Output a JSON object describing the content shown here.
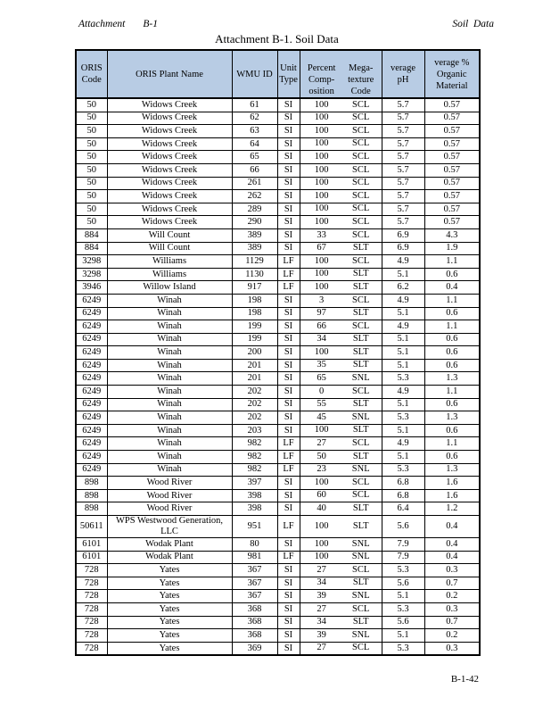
{
  "page": {
    "running_header": {
      "left_label": "Attachment",
      "left_ref": "B-1",
      "right": "Soil  Data"
    },
    "title": "Attachment B-1. Soil Data",
    "footer_page_number": "B-1-42"
  },
  "table": {
    "header_bg_color": "#B8CCE4",
    "border_color": "#000000",
    "columns": [
      "ORIS\nCode",
      "ORIS Plant Name",
      "WMU ID",
      "Unit\nType",
      "Percent\nComp-\nosition",
      "Mega-\ntexture\nCode",
      "verage\npH",
      "verage %\nOrganic\nMaterial"
    ],
    "rows": [
      [
        "50",
        "Widows Creek",
        "61",
        "SI",
        "100",
        "SCL",
        "5.7",
        "0.57"
      ],
      [
        "50",
        "Widows Creek",
        "62",
        "SI",
        "100",
        "SCL",
        "5.7",
        "0.57"
      ],
      [
        "50",
        "Widows Creek",
        "63",
        "SI",
        "100",
        "SCL",
        "5.7",
        "0.57"
      ],
      [
        "50",
        "Widows Creek",
        "64",
        "SI",
        "100",
        "SCL",
        "5.7",
        "0.57"
      ],
      [
        "50",
        "Widows Creek",
        "65",
        "SI",
        "100",
        "SCL",
        "5.7",
        "0.57"
      ],
      [
        "50",
        "Widows Creek",
        "66",
        "SI",
        "100",
        "SCL",
        "5.7",
        "0.57"
      ],
      [
        "50",
        "Widows Creek",
        "261",
        "SI",
        "100",
        "SCL",
        "5.7",
        "0.57"
      ],
      [
        "50",
        "Widows Creek",
        "262",
        "SI",
        "100",
        "SCL",
        "5.7",
        "0.57"
      ],
      [
        "50",
        "Widows Creek",
        "289",
        "SI",
        "100",
        "SCL",
        "5.7",
        "0.57"
      ],
      [
        "50",
        "Widows Creek",
        "290",
        "SI",
        "100",
        "SCL",
        "5.7",
        "0.57"
      ],
      [
        "884",
        "Will Count",
        "389",
        "SI",
        "33",
        "SCL",
        "6.9",
        "4.3"
      ],
      [
        "884",
        "Will Count",
        "389",
        "SI",
        "67",
        "SLT",
        "6.9",
        "1.9"
      ],
      [
        "3298",
        "Williams",
        "1129",
        "LF",
        "100",
        "SCL",
        "4.9",
        "1.1"
      ],
      [
        "3298",
        "Williams",
        "1130",
        "LF",
        "100",
        "SLT",
        "5.1",
        "0.6"
      ],
      [
        "3946",
        "Willow Island",
        "917",
        "LF",
        "100",
        "SLT",
        "6.2",
        "0.4"
      ],
      [
        "6249",
        "Winah",
        "198",
        "SI",
        "3",
        "SCL",
        "4.9",
        "1.1"
      ],
      [
        "6249",
        "Winah",
        "198",
        "SI",
        "97",
        "SLT",
        "5.1",
        "0.6"
      ],
      [
        "6249",
        "Winah",
        "199",
        "SI",
        "66",
        "SCL",
        "4.9",
        "1.1"
      ],
      [
        "6249",
        "Winah",
        "199",
        "SI",
        "34",
        "SLT",
        "5.1",
        "0.6"
      ],
      [
        "6249",
        "Winah",
        "200",
        "SI",
        "100",
        "SLT",
        "5.1",
        "0.6"
      ],
      [
        "6249",
        "Winah",
        "201",
        "SI",
        "35",
        "SLT",
        "5.1",
        "0.6"
      ],
      [
        "6249",
        "Winah",
        "201",
        "SI",
        "65",
        "SNL",
        "5.3",
        "1.3"
      ],
      [
        "6249",
        "Winah",
        "202",
        "SI",
        "0",
        "SCL",
        "4.9",
        "1.1"
      ],
      [
        "6249",
        "Winah",
        "202",
        "SI",
        "55",
        "SLT",
        "5.1",
        "0.6"
      ],
      [
        "6249",
        "Winah",
        "202",
        "SI",
        "45",
        "SNL",
        "5.3",
        "1.3"
      ],
      [
        "6249",
        "Winah",
        "203",
        "SI",
        "100",
        "SLT",
        "5.1",
        "0.6"
      ],
      [
        "6249",
        "Winah",
        "982",
        "LF",
        "27",
        "SCL",
        "4.9",
        "1.1"
      ],
      [
        "6249",
        "Winah",
        "982",
        "LF",
        "50",
        "SLT",
        "5.1",
        "0.6"
      ],
      [
        "6249",
        "Winah",
        "982",
        "LF",
        "23",
        "SNL",
        "5.3",
        "1.3"
      ],
      [
        "898",
        "Wood River",
        "397",
        "SI",
        "100",
        "SCL",
        "6.8",
        "1.6"
      ],
      [
        "898",
        "Wood River",
        "398",
        "SI",
        "60",
        "SCL",
        "6.8",
        "1.6"
      ],
      [
        "898",
        "Wood River",
        "398",
        "SI",
        "40",
        "SLT",
        "6.4",
        "1.2"
      ],
      [
        "50611",
        "WPS Westwood Generation,\nLLC",
        "951",
        "LF",
        "100",
        "SLT",
        "5.6",
        "0.4"
      ],
      [
        "6101",
        "Wodak Plant",
        "80",
        "SI",
        "100",
        "SNL",
        "7.9",
        "0.4"
      ],
      [
        "6101",
        "Wodak Plant",
        "981",
        "LF",
        "100",
        "SNL",
        "7.9",
        "0.4"
      ],
      [
        "728",
        "Yates",
        "367",
        "SI",
        "27",
        "SCL",
        "5.3",
        "0.3"
      ],
      [
        "728",
        "Yates",
        "367",
        "SI",
        "34",
        "SLT",
        "5.6",
        "0.7"
      ],
      [
        "728",
        "Yates",
        "367",
        "SI",
        "39",
        "SNL",
        "5.1",
        "0.2"
      ],
      [
        "728",
        "Yates",
        "368",
        "SI",
        "27",
        "SCL",
        "5.3",
        "0.3"
      ],
      [
        "728",
        "Yates",
        "368",
        "SI",
        "34",
        "SLT",
        "5.6",
        "0.7"
      ],
      [
        "728",
        "Yates",
        "368",
        "SI",
        "39",
        "SNL",
        "5.1",
        "0.2"
      ],
      [
        "728",
        "Yates",
        "369",
        "SI",
        "27",
        "SCL",
        "5.3",
        "0.3"
      ]
    ]
  }
}
